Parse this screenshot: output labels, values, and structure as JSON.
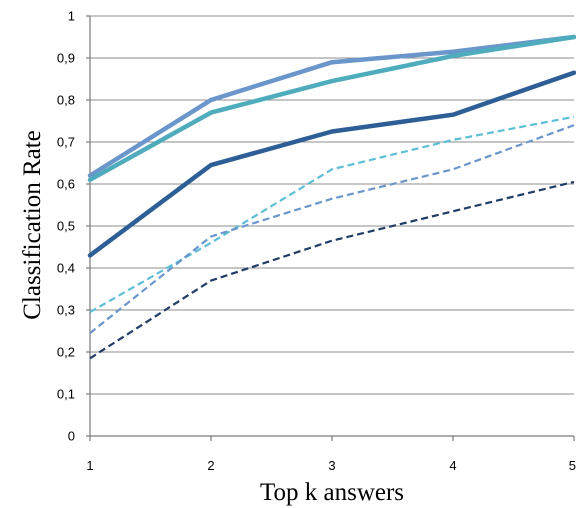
{
  "chart_data": {
    "type": "line",
    "title": "",
    "xlabel": "Top k answers",
    "ylabel": "Classification Rate",
    "x": [
      1,
      2,
      3,
      4,
      5
    ],
    "x_tick_labels": [
      "1",
      "2",
      "3",
      "4",
      "5"
    ],
    "ylim": [
      0,
      1
    ],
    "y_tick_labels": [
      "0",
      "0,1",
      "0,2",
      "0,3",
      "0,4",
      "0,5",
      "0,6",
      "0,7",
      "0,8",
      "0,9",
      "1"
    ],
    "grid": "horizontal",
    "legend": "none",
    "series": [
      {
        "color": "#6a96cc",
        "style": "solid",
        "values": [
          0.62,
          0.8,
          0.89,
          0.915,
          0.95
        ]
      },
      {
        "color": "#4eacbc",
        "style": "solid",
        "values": [
          0.61,
          0.77,
          0.845,
          0.905,
          0.95
        ]
      },
      {
        "color": "#2d5f96",
        "style": "solid",
        "values": [
          0.43,
          0.645,
          0.725,
          0.765,
          0.865
        ]
      },
      {
        "color": "#5dbfd6",
        "style": "dashed",
        "values": [
          0.295,
          0.46,
          0.635,
          0.705,
          0.76
        ]
      },
      {
        "color": "#6a96cc",
        "style": "dashed",
        "values": [
          0.245,
          0.475,
          0.565,
          0.635,
          0.74
        ]
      },
      {
        "color": "#1f3d66",
        "style": "dashed",
        "values": [
          0.185,
          0.37,
          0.465,
          0.535,
          0.605
        ]
      }
    ]
  }
}
